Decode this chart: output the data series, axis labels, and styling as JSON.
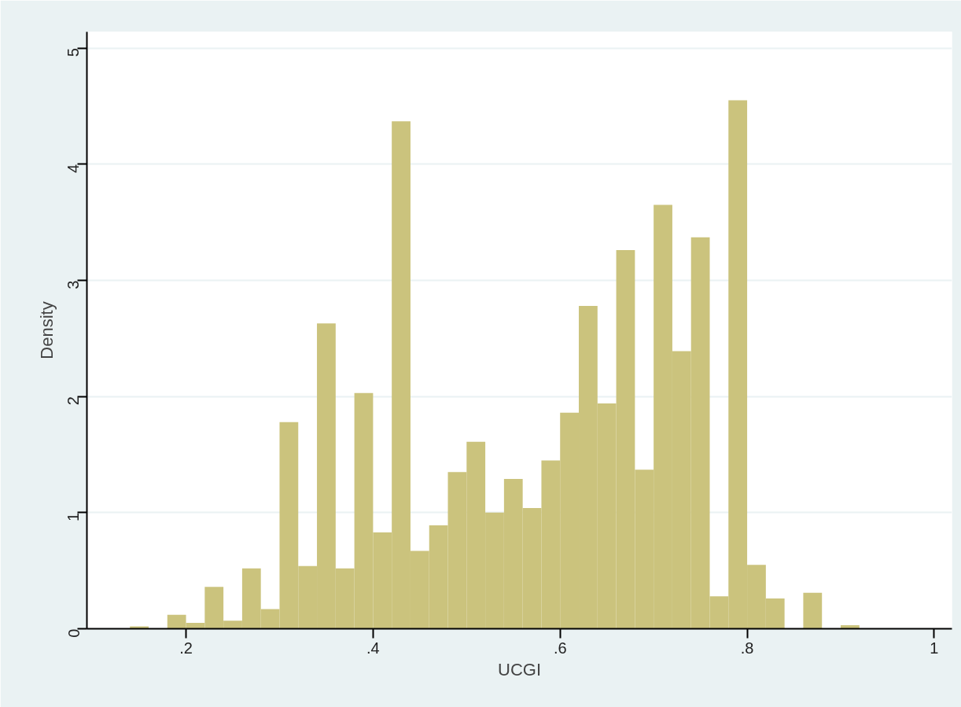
{
  "chart_data": {
    "type": "histogram",
    "xlabel": "UCGI",
    "ylabel": "Density",
    "color": "#cbc37d",
    "bins": [
      0.14,
      0.16,
      0.18,
      0.2,
      0.22,
      0.24,
      0.26,
      0.28,
      0.3,
      0.32,
      0.34,
      0.36,
      0.38,
      0.4,
      0.42,
      0.44,
      0.46,
      0.48,
      0.5,
      0.52,
      0.54,
      0.56,
      0.58,
      0.6,
      0.62,
      0.64,
      0.66,
      0.68,
      0.7,
      0.72,
      0.74,
      0.76,
      0.78,
      0.8,
      0.82,
      0.84,
      0.86,
      0.88,
      0.9,
      0.92
    ],
    "values": [
      0.02,
      0,
      0.12,
      0.05,
      0.36,
      0.07,
      0.52,
      0.17,
      1.78,
      0.54,
      2.63,
      0.52,
      2.03,
      0.83,
      4.37,
      0.67,
      0.89,
      1.35,
      1.61,
      1.0,
      1.29,
      1.04,
      1.45,
      1.86,
      2.78,
      1.94,
      3.26,
      1.37,
      3.65,
      2.39,
      3.37,
      0.28,
      4.55,
      0.55,
      0.26,
      0,
      0.31,
      0,
      0.03
    ],
    "xlim": [
      0.094,
      1.019
    ],
    "ylim": [
      0,
      5.14
    ],
    "xticks": [
      {
        "value": 0.2,
        "label": ".2"
      },
      {
        "value": 0.4,
        "label": ".4"
      },
      {
        "value": 0.6,
        "label": ".6"
      },
      {
        "value": 0.8,
        "label": ".8"
      },
      1
    ],
    "yticks": [
      0,
      1,
      2,
      3,
      4,
      5
    ],
    "grid": "y"
  }
}
